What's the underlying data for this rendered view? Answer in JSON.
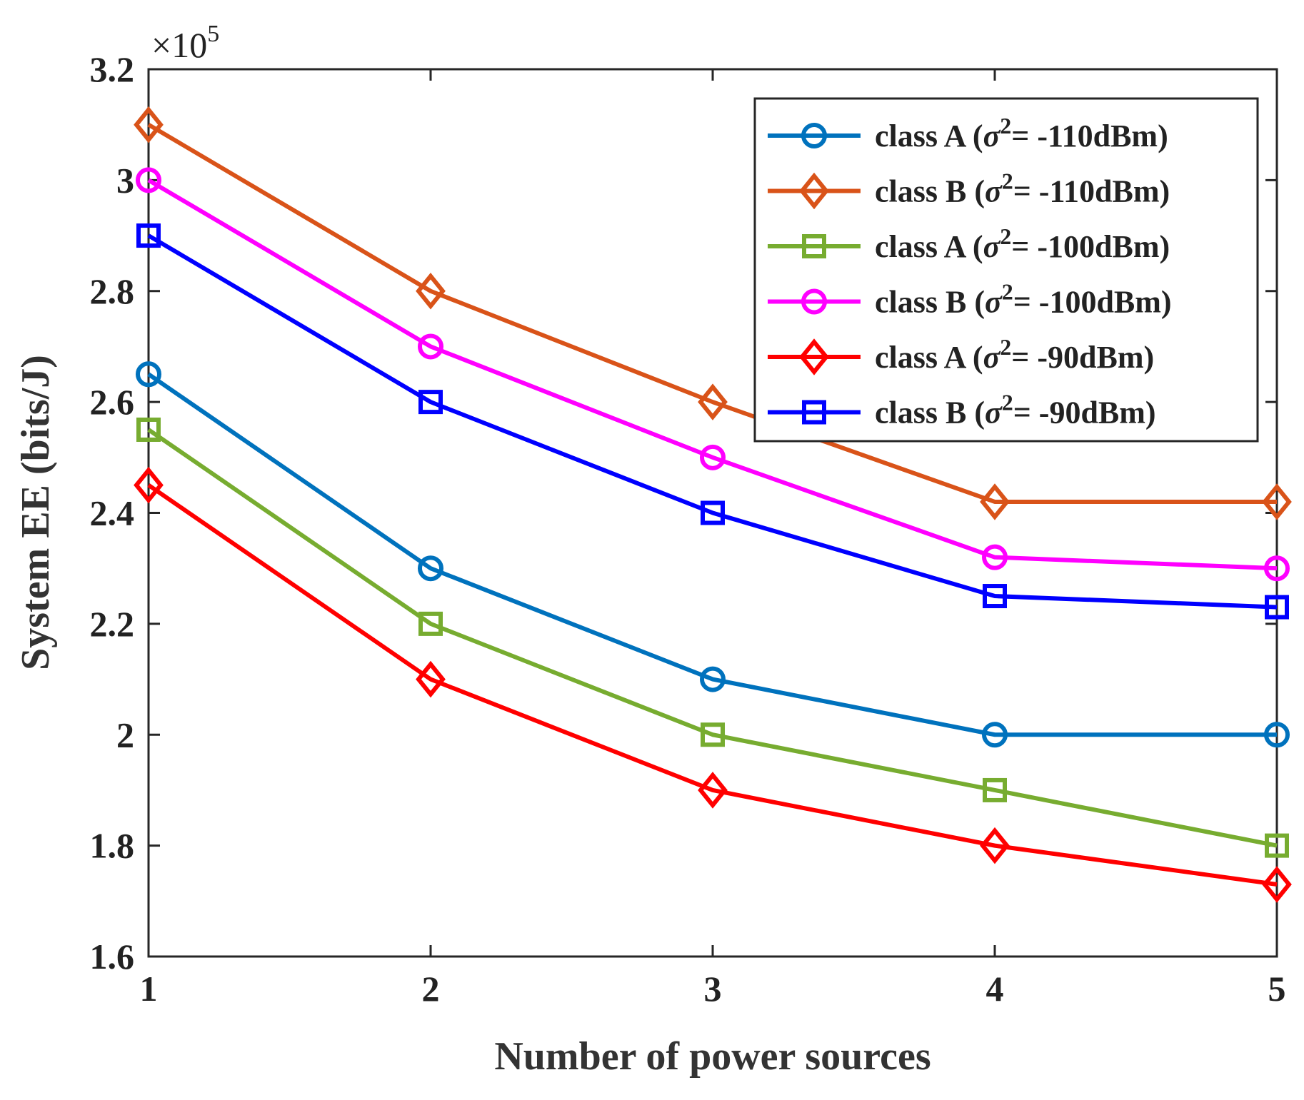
{
  "chart_data": {
    "type": "line",
    "title": "",
    "xlabel": "Number of power sources",
    "ylabel": "System EE (bits/J)",
    "x": [
      1,
      2,
      3,
      4,
      5
    ],
    "xlim": [
      1,
      5
    ],
    "ylim": [
      1.6,
      3.2
    ],
    "xticks": [
      "1",
      "2",
      "3",
      "4",
      "5"
    ],
    "yticks": [
      "1.6",
      "1.8",
      "2",
      "2.2",
      "2.4",
      "2.6",
      "2.8",
      "3",
      "3.2"
    ],
    "y_multiplier": {
      "base": "×10",
      "exponent": "5"
    },
    "grid": false,
    "legend_position": "top-right",
    "series": [
      {
        "name": "class A (σ²= -110dBm)",
        "legend_prefix": "class A (",
        "legend_symbol": "σ",
        "legend_sup": "2",
        "legend_suffix": "= -110dBm)",
        "color": "#0072BD",
        "marker": "circle",
        "values": [
          2.65,
          2.3,
          2.1,
          2.0,
          2.0
        ]
      },
      {
        "name": "class B (σ²= -110dBm)",
        "legend_prefix": "class B (",
        "legend_symbol": "σ",
        "legend_sup": "2",
        "legend_suffix": "= -110dBm)",
        "color": "#D95319",
        "marker": "diamond",
        "values": [
          3.1,
          2.8,
          2.6,
          2.42,
          2.42
        ]
      },
      {
        "name": "class A (σ²= -100dBm)",
        "legend_prefix": "class A (",
        "legend_symbol": "σ",
        "legend_sup": "2",
        "legend_suffix": "= -100dBm)",
        "color": "#77AC30",
        "marker": "square",
        "values": [
          2.55,
          2.2,
          2.0,
          1.9,
          1.8
        ]
      },
      {
        "name": "class B (σ²= -100dBm)",
        "legend_prefix": "class B (",
        "legend_symbol": "σ",
        "legend_sup": "2",
        "legend_suffix": "= -100dBm)",
        "color": "#FF00FF",
        "marker": "circle",
        "values": [
          3.0,
          2.7,
          2.5,
          2.32,
          2.3
        ]
      },
      {
        "name": "class A (σ²= -90dBm)",
        "legend_prefix": "class A (",
        "legend_symbol": "σ",
        "legend_sup": "2",
        "legend_suffix": "= -90dBm)",
        "color": "#FF0000",
        "marker": "diamond",
        "values": [
          2.45,
          2.1,
          1.9,
          1.8,
          1.73
        ]
      },
      {
        "name": "class B (σ²= -90dBm)",
        "legend_prefix": "class B (",
        "legend_symbol": "σ",
        "legend_sup": "2",
        "legend_suffix": "= -90dBm)",
        "color": "#0000FF",
        "marker": "square",
        "values": [
          2.9,
          2.6,
          2.4,
          2.25,
          2.23
        ]
      }
    ]
  }
}
